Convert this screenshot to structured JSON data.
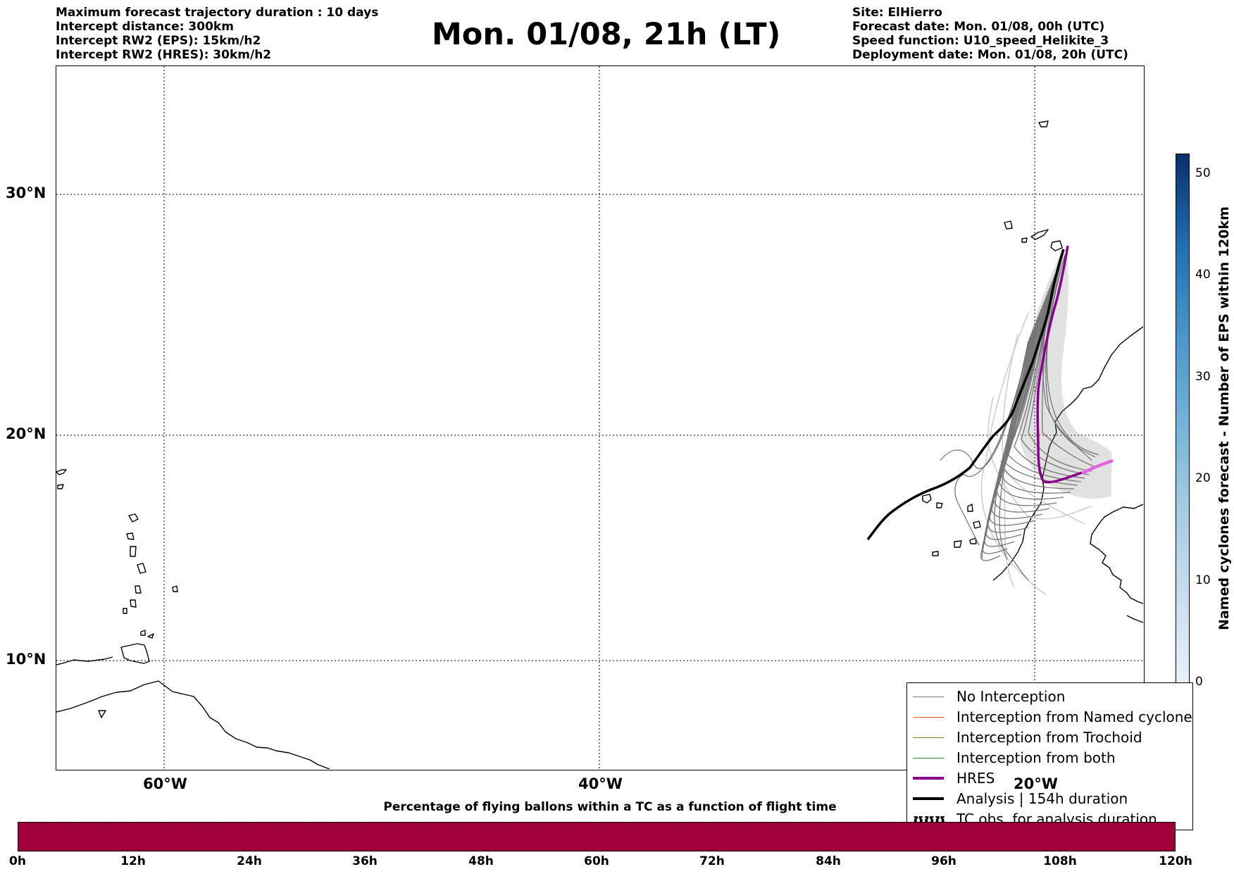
{
  "header": {
    "left_lines": [
      "Maximum forecast trajectory duration : 10 days",
      "Intercept distance: 300km",
      "Intercept RW2 (EPS):  15km/h2",
      "Intercept RW2 (HRES): 30km/h2"
    ],
    "title": "Mon. 01/08, 21h (LT)",
    "right_lines": [
      "Site: ElHierro",
      "Forecast date: Mon. 01/08, 00h (UTC)",
      "Speed function: U10_speed_Helikite_3",
      "Deployment date: Mon. 01/08, 20h (UTC)"
    ]
  },
  "map": {
    "lat_labels": [
      "30°N",
      "20°N",
      "10°N"
    ],
    "lon_labels": [
      "60°W",
      "40°W",
      "20°W"
    ],
    "colors": {
      "coastline": "#000000",
      "eps_no_interception": "#777777",
      "late_tracks": "#cccccc",
      "hres": "#8b008b",
      "hres_highlight": "#e066e0",
      "analysis": "#000000"
    }
  },
  "legend": {
    "items": [
      {
        "label": "No Interception",
        "color": "#777777"
      },
      {
        "label": "Interception from Named cyclone",
        "color": "#e8501a"
      },
      {
        "label": "Interception from Trochoid",
        "color": "#808000"
      },
      {
        "label": "Interception from both",
        "color": "#228b22"
      },
      {
        "label": "HRES",
        "color": "#8b008b"
      },
      {
        "label": "Analysis | 154h duration",
        "color": "#000000"
      },
      {
        "label": "TC obs. for analysis duration",
        "icon": "cyclone-symbols-icon",
        "glyphs": "ʊʊʊ"
      }
    ]
  },
  "colorbar_right": {
    "label": "Named cyclones forecast - Number of EPS within 120km",
    "ticks": [
      "0",
      "10",
      "20",
      "30",
      "40",
      "50"
    ],
    "range": [
      0,
      52
    ]
  },
  "colorbar_bottom": {
    "title": "Percentage of flying ballons within a TC as a function of flight time",
    "ticks": [
      "0h",
      "12h",
      "24h",
      "36h",
      "48h",
      "60h",
      "72h",
      "84h",
      "96h",
      "108h",
      "120h"
    ],
    "color": "#a0003c"
  }
}
